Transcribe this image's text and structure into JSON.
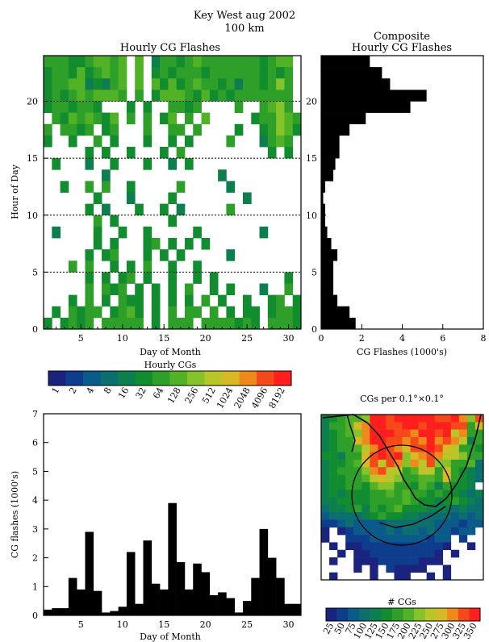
{
  "page": {
    "title_line1": "Key West aug 2002",
    "title_line2": "100 km"
  },
  "heatmap_panel": {
    "title": "Hourly CG Flashes",
    "xlabel": "Day of Month",
    "ylabel": "Hour of Day",
    "xticks": [
      "5",
      "10",
      "15",
      "20",
      "25",
      "30"
    ],
    "yticks": [
      "0",
      "5",
      "10",
      "15",
      "20"
    ],
    "colorbar_title": "Hourly CGs",
    "colorbar_labels": [
      "1",
      "2",
      "4",
      "8",
      "16",
      "32",
      "64",
      "128",
      "256",
      "512",
      "1024",
      "2048",
      "4096",
      "8192"
    ],
    "colors": [
      "#1a237e",
      "#0d3d8c",
      "#0a5a8a",
      "#0c6e6e",
      "#0d7f4f",
      "#118d2f",
      "#2ea02a",
      "#52b226",
      "#86c22a",
      "#b8c62a",
      "#d8b825",
      "#ee8a1c",
      "#f5491a",
      "#ff1f1f"
    ]
  },
  "composite_panel": {
    "title_line1": "Composite",
    "title_line2": "Hourly CG Flashes",
    "xlabel": "CG Flashes (1000's)",
    "xticks": [
      "0",
      "2",
      "4",
      "6",
      "8"
    ],
    "yticks": [
      "0",
      "5",
      "10",
      "15",
      "20"
    ]
  },
  "daily_panel": {
    "xlabel": "Day of Month",
    "ylabel": "CG flashes (1000's)",
    "xticks": [
      "5",
      "10",
      "15",
      "20",
      "25",
      "30"
    ],
    "yticks": [
      "0",
      "1",
      "2",
      "3",
      "4",
      "5",
      "6",
      "7"
    ]
  },
  "map_panel": {
    "title": "CGs per 0.1°×0.1°",
    "colorbar_title": "# CGs",
    "colorbar_labels": [
      "25",
      "50",
      "75",
      "100",
      "125",
      "150",
      "175",
      "200",
      "225",
      "250",
      "275",
      "300",
      "325",
      "350"
    ],
    "colors": [
      "#1a237e",
      "#0d3d8c",
      "#0a5a8a",
      "#0c6e6e",
      "#0d7f4f",
      "#118d2f",
      "#2ea02a",
      "#52b226",
      "#86c22a",
      "#b8c62a",
      "#d8b825",
      "#ee8a1c",
      "#f5491a",
      "#ff1f1f"
    ]
  },
  "chart_data": [
    {
      "type": "heatmap",
      "title": "Hourly CG Flashes",
      "xlabel": "Day of Month",
      "ylabel": "Hour of Day",
      "xlim": [
        0.5,
        31.5
      ],
      "ylim": [
        0,
        24
      ],
      "days": [
        1,
        2,
        3,
        4,
        5,
        6,
        7,
        8,
        9,
        10,
        11,
        12,
        13,
        14,
        15,
        16,
        17,
        18,
        19,
        20,
        21,
        22,
        23,
        24,
        25,
        26,
        27,
        28,
        29,
        30,
        31
      ],
      "hours": [
        0,
        1,
        2,
        3,
        4,
        5,
        6,
        7,
        8,
        9,
        10,
        11,
        12,
        13,
        14,
        15,
        16,
        17,
        18,
        19,
        20,
        21,
        22,
        23
      ],
      "note_values": "log2 class index 0-13 (1..8192 hourly CGs), -1 = none",
      "grid_rows_hour23_to_0": [
        "6665567767-7-46656766666665677-",
        "5665756767-7-56566656666665656-",
        "5667745467-7-75756766564665686-",
        "5656767776-6-57776575656666666-",
        "5665665---5-5--6656----6--6786-",
        "-65767657-6-6-57-6-7-----566876",
        "6-6656-56---6--66-6----5--56875",
        "5--5--6-5---5--5-5----6---4676-",
        "-----5-5--5---5-6----------5-5-",
        "-5---4--5---5--4-5-------------",
        "-------4-------------4----------",
        "--5--6-6--5-----6-----4--------",
        "------5---4----5--------4------",
        "-----5-4---5--5-4-----6--------",
        "------6-5------5---------------",
        "-4----5--5--5-----5-------4----",
        "------5-5---56-5-5-5-----------",
        "-----5-56---5-5-5-----4--------",
        "---6-6--5-5-6--5--5------------",
        "-----5-5-56-5--5--5-5--------5-",
        "-----6-656-5-5-5-6--5-5---4--6-",
        "---5-6-5-655-5-5-5-6-5--5--56-5",
        "-5-6566-5675-5-6-66-6-5-55-5665",
        "5-5656-66666-5-666-6666565-6665"
      ]
    },
    {
      "type": "bar",
      "title": "Composite Hourly CG Flashes",
      "xlabel": "CG Flashes (1000's)",
      "orientation": "horizontal",
      "xlim": [
        0,
        8
      ],
      "ylim": [
        0,
        24
      ],
      "categories": [
        0,
        1,
        2,
        3,
        4,
        5,
        6,
        7,
        8,
        9,
        10,
        11,
        12,
        13,
        14,
        15,
        16,
        17,
        18,
        19,
        20,
        21,
        22,
        23
      ],
      "values": [
        1.7,
        1.4,
        0.8,
        0.6,
        0.6,
        0.6,
        0.8,
        0.5,
        0.3,
        0.2,
        0.2,
        0.1,
        0.2,
        0.6,
        0.7,
        0.9,
        0.9,
        1.4,
        2.2,
        4.4,
        5.2,
        3.4,
        3.0,
        2.4
      ]
    },
    {
      "type": "bar",
      "xlabel": "Day of Month",
      "ylabel": "CG flashes (1000's)",
      "xlim": [
        0.5,
        31.5
      ],
      "ylim": [
        0,
        7
      ],
      "categories": [
        1,
        2,
        3,
        4,
        5,
        6,
        7,
        8,
        9,
        10,
        11,
        12,
        13,
        14,
        15,
        16,
        17,
        18,
        19,
        20,
        21,
        22,
        23,
        24,
        25,
        26,
        27,
        28,
        29,
        30,
        31
      ],
      "values": [
        0.2,
        0.25,
        0.25,
        1.3,
        0.9,
        2.9,
        0.85,
        0.1,
        0.15,
        0.3,
        2.2,
        0.4,
        2.6,
        1.1,
        0.9,
        3.9,
        1.85,
        0.9,
        1.8,
        1.5,
        0.7,
        0.8,
        0.6,
        0.1,
        0.5,
        1.3,
        3.0,
        2.0,
        1.3,
        0.4,
        0.4
      ]
    },
    {
      "type": "heatmap",
      "title": "CGs per 0.1°×0.1°",
      "colorbar_title": "# CGs",
      "note_values": "class index 0-13 (25..350 CGs), -1 = none; rows north to south",
      "grid_rows": [
        "456778ddcdddddccdb8c",
        "4667abddccddcdddcc6a",
        "45678bdddccbddcd9b66",
        "4566abddccbcbdbcb946",
        "456679bdcbaccdca9665",
        "55466acdcd8abcb99866",
        "45567ac9cb8b9c886673",
        "456668bc9967996a6543",
        "4556679a9866776a6543",
        "4556657886657646554-",
        "45455566767665655434",
        "44555566667655456543",
        "34456465675554443433",
        "23333456554433332323",
        "11232222333333222122",
        "0-01222232332322122-",
        "0--1112222222122-1--",
        "-0-0011111111110--0-",
        "--0-00111111110-0---",
        "-0--00011111000-----",
        "----0-0-10000--0----",
        "-0----0--00--0-0----"
      ]
    }
  ]
}
